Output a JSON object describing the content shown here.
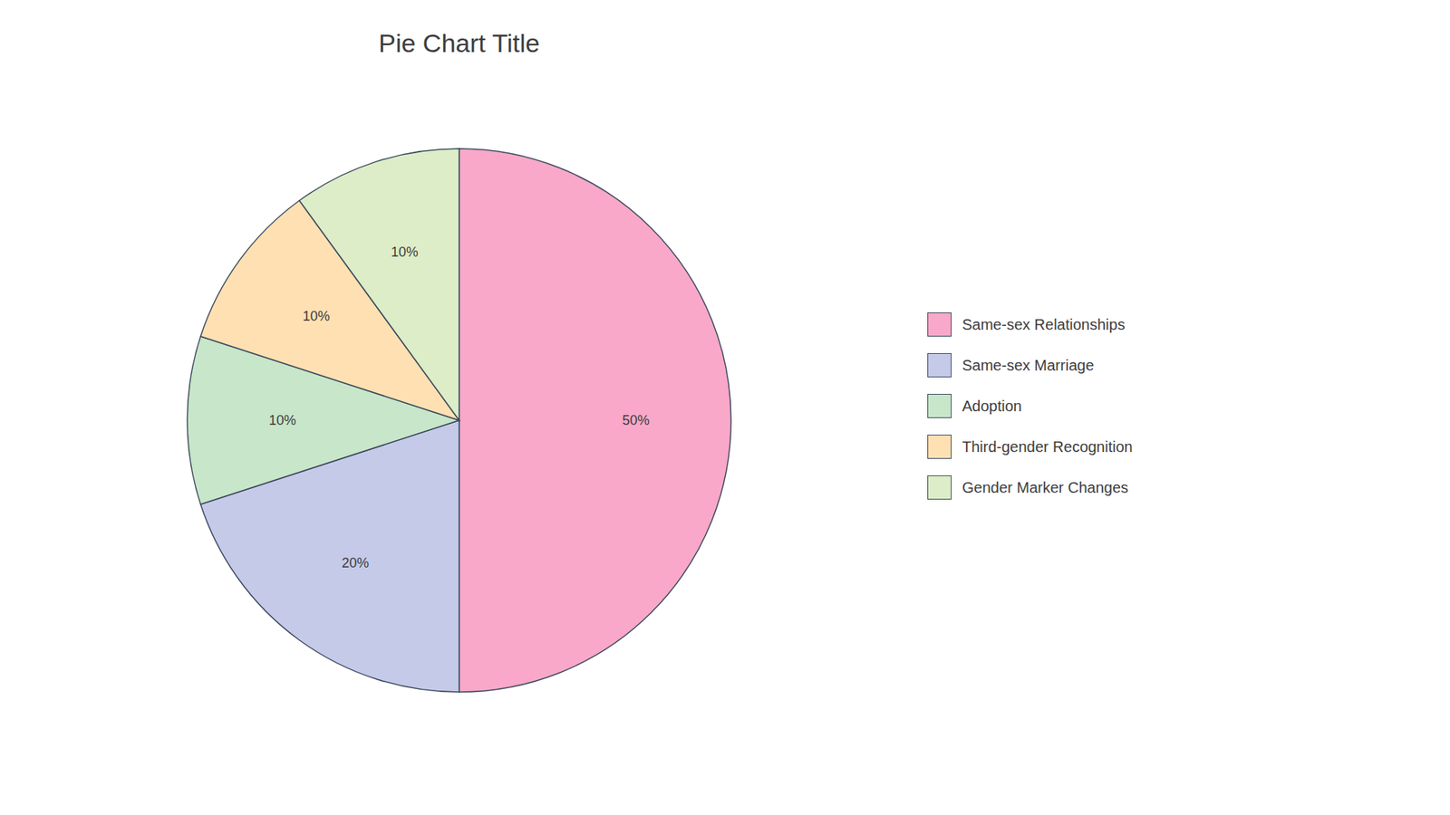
{
  "chart_data": {
    "type": "pie",
    "title": "Pie Chart Title",
    "categories": [
      "Same-sex Relationships",
      "Same-sex Marriage",
      "Adoption",
      "Third-gender Recognition",
      "Gender Marker Changes"
    ],
    "values": [
      50,
      20,
      10,
      10,
      10
    ],
    "value_labels": [
      "50%",
      "20%",
      "10%",
      "10%",
      "10%"
    ],
    "colors": [
      "#F9A8C9",
      "#C5CAE9",
      "#C8E6C9",
      "#FFE0B2",
      "#DCEDC8"
    ],
    "data_labels": true,
    "legend": "right"
  }
}
